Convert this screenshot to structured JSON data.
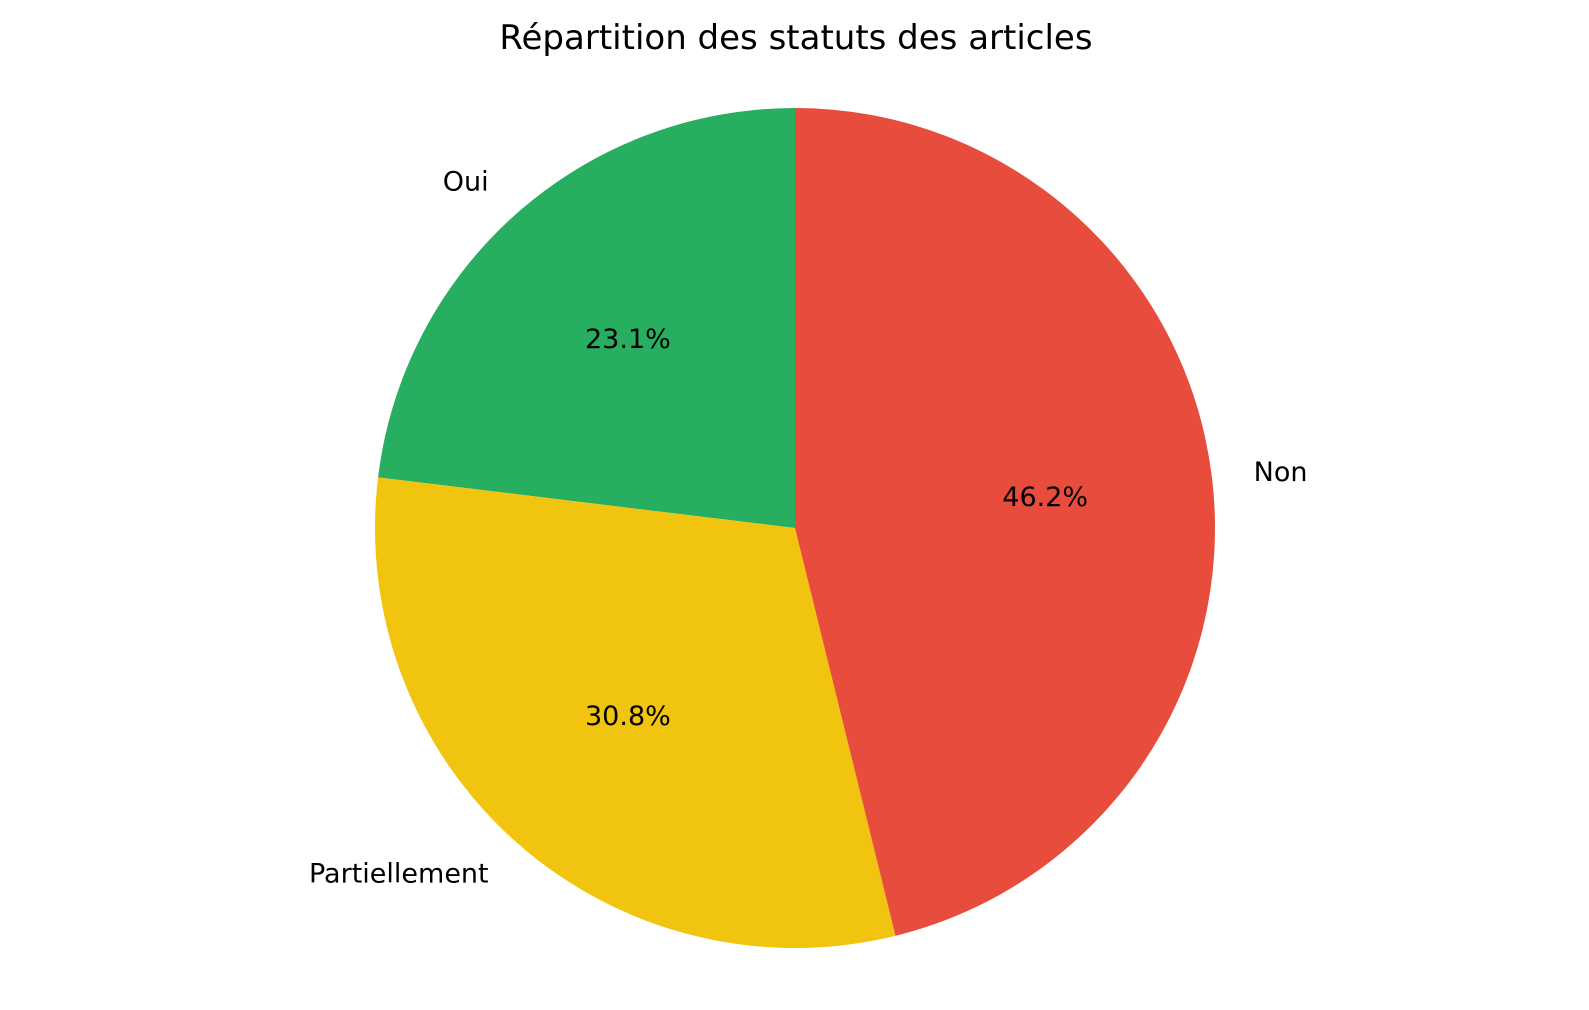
{
  "chart_data": {
    "type": "pie",
    "title": "Répartition des statuts des articles",
    "start_angle": "top, counter-clockwise",
    "slices": [
      {
        "label": "Oui",
        "percent": 23.1,
        "pct_label": "23.1%",
        "color": "#27ae60"
      },
      {
        "label": "Partiellement",
        "percent": 30.8,
        "pct_label": "30.8%",
        "color": "#f1c40f"
      },
      {
        "label": "Non",
        "percent": 46.2,
        "pct_label": "46.2%",
        "color": "#e74c3c"
      }
    ]
  }
}
